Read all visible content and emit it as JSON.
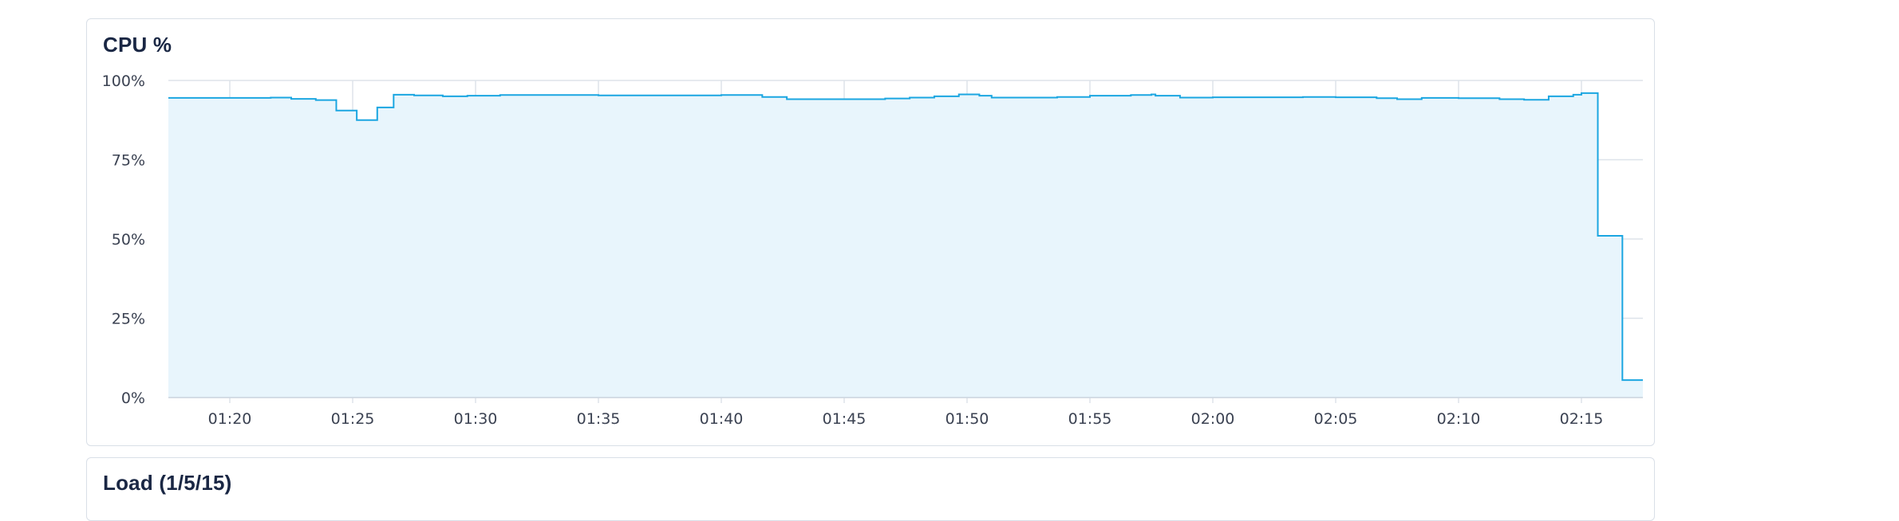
{
  "panels": {
    "cpu": {
      "title": "CPU %"
    },
    "load": {
      "title": "Load (1/5/15)"
    }
  },
  "chart_data": {
    "type": "area",
    "title": "CPU %",
    "xlabel": "",
    "ylabel": "",
    "x_range": [
      "01:17:30",
      "02:17:30"
    ],
    "ylim": [
      0,
      100
    ],
    "y_ticks": [
      {
        "value": 0,
        "label": "0%"
      },
      {
        "value": 25,
        "label": "25%"
      },
      {
        "value": 50,
        "label": "50%"
      },
      {
        "value": 75,
        "label": "75%"
      },
      {
        "value": 100,
        "label": "100%"
      }
    ],
    "x_ticks": [
      "01:20",
      "01:25",
      "01:30",
      "01:35",
      "01:40",
      "01:45",
      "01:50",
      "01:55",
      "02:00",
      "02:05",
      "02:10",
      "02:15"
    ],
    "grid": true,
    "line_color": "#1ba6e1",
    "fill_color": "#e8f5fc",
    "series": [
      {
        "step": true,
        "points": [
          [
            "01:17:30",
            94.5
          ],
          [
            "01:20:00",
            94.5
          ],
          [
            "01:21:40",
            94.6
          ],
          [
            "01:22:30",
            94.2
          ],
          [
            "01:23:30",
            93.8
          ],
          [
            "01:24:20",
            90.5
          ],
          [
            "01:25:10",
            87.5
          ],
          [
            "01:26:00",
            91.5
          ],
          [
            "01:26:40",
            95.5
          ],
          [
            "01:27:30",
            95.3
          ],
          [
            "01:28:40",
            95.0
          ],
          [
            "01:29:40",
            95.2
          ],
          [
            "01:31:00",
            95.4
          ],
          [
            "01:35:00",
            95.3
          ],
          [
            "01:40:00",
            95.4
          ],
          [
            "01:41:40",
            94.8
          ],
          [
            "01:42:40",
            94.1
          ],
          [
            "01:45:00",
            94.1
          ],
          [
            "01:46:40",
            94.3
          ],
          [
            "01:47:40",
            94.6
          ],
          [
            "01:48:40",
            95.0
          ],
          [
            "01:49:40",
            95.6
          ],
          [
            "01:50:30",
            95.2
          ],
          [
            "01:51:00",
            94.6
          ],
          [
            "01:53:40",
            94.8
          ],
          [
            "01:55:00",
            95.2
          ],
          [
            "01:56:40",
            95.4
          ],
          [
            "01:57:30",
            95.6
          ],
          [
            "01:57:40",
            95.2
          ],
          [
            "01:58:40",
            94.6
          ],
          [
            "02:00:00",
            94.7
          ],
          [
            "02:03:40",
            94.8
          ],
          [
            "02:05:00",
            94.7
          ],
          [
            "02:06:40",
            94.4
          ],
          [
            "02:07:30",
            94.1
          ],
          [
            "02:08:30",
            94.5
          ],
          [
            "02:10:00",
            94.4
          ],
          [
            "02:11:40",
            94.1
          ],
          [
            "02:12:40",
            93.9
          ],
          [
            "02:13:40",
            95.0
          ],
          [
            "02:14:40",
            95.5
          ],
          [
            "02:15:00",
            96.0
          ],
          [
            "02:15:40",
            51.0
          ],
          [
            "02:16:40",
            5.5
          ],
          [
            "02:17:30",
            5.5
          ]
        ]
      }
    ]
  }
}
